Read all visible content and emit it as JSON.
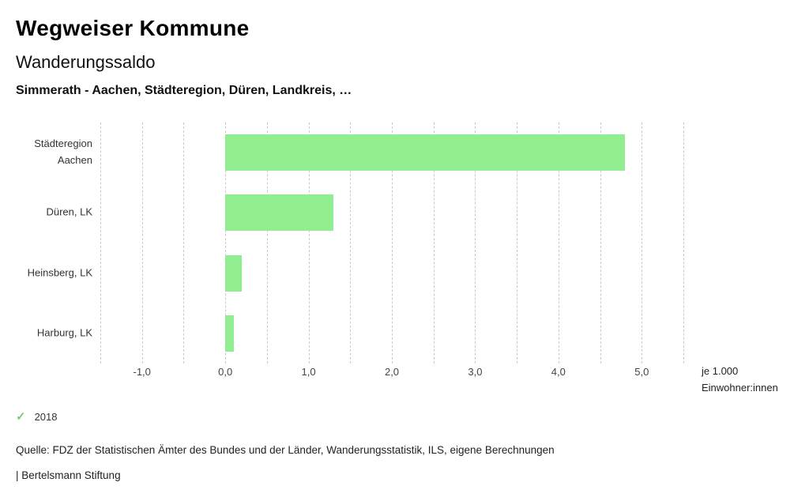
{
  "header": {
    "title": "Wegweiser Kommune",
    "subtitle": "Wanderungssaldo",
    "selection": "Simmerath - Aachen, Städteregion, Düren, Landkreis, …"
  },
  "chart_data": {
    "type": "bar",
    "orientation": "horizontal",
    "title": "Wanderungssaldo",
    "categories": [
      "Städteregion Aachen",
      "Düren, LK",
      "Heinsberg, LK",
      "Harburg, LK"
    ],
    "values": [
      4.8,
      1.3,
      0.2,
      0.1
    ],
    "series": [
      {
        "name": "2018",
        "values": [
          4.8,
          1.3,
          0.2,
          0.1
        ]
      }
    ],
    "xlim": [
      -1.5,
      5.5
    ],
    "grid_step": 0.5,
    "grid": "dashed-vertical",
    "x_ticks": [
      -1,
      0,
      1,
      2,
      3,
      4,
      5
    ],
    "x_tick_labels": [
      "-1,0",
      "0,0",
      "1,0",
      "2,0",
      "3,0",
      "4,0",
      "5,0"
    ],
    "xlabel": "je 1.000 Einwohner:innen",
    "bar_color": "#90ee90",
    "legend_position": "bottom-left"
  },
  "unit": {
    "line1": "je 1.000",
    "line2": "Einwohner:innen"
  },
  "legend": {
    "check_glyph": "✓",
    "check_color": "#7cc87c",
    "year": "2018"
  },
  "footer": {
    "source": "Quelle: FDZ der Statistischen Ämter des Bundes und der Länder, Wanderungsstatistik, ILS, eigene Berechnungen",
    "brand": "| Bertelsmann Stiftung"
  }
}
